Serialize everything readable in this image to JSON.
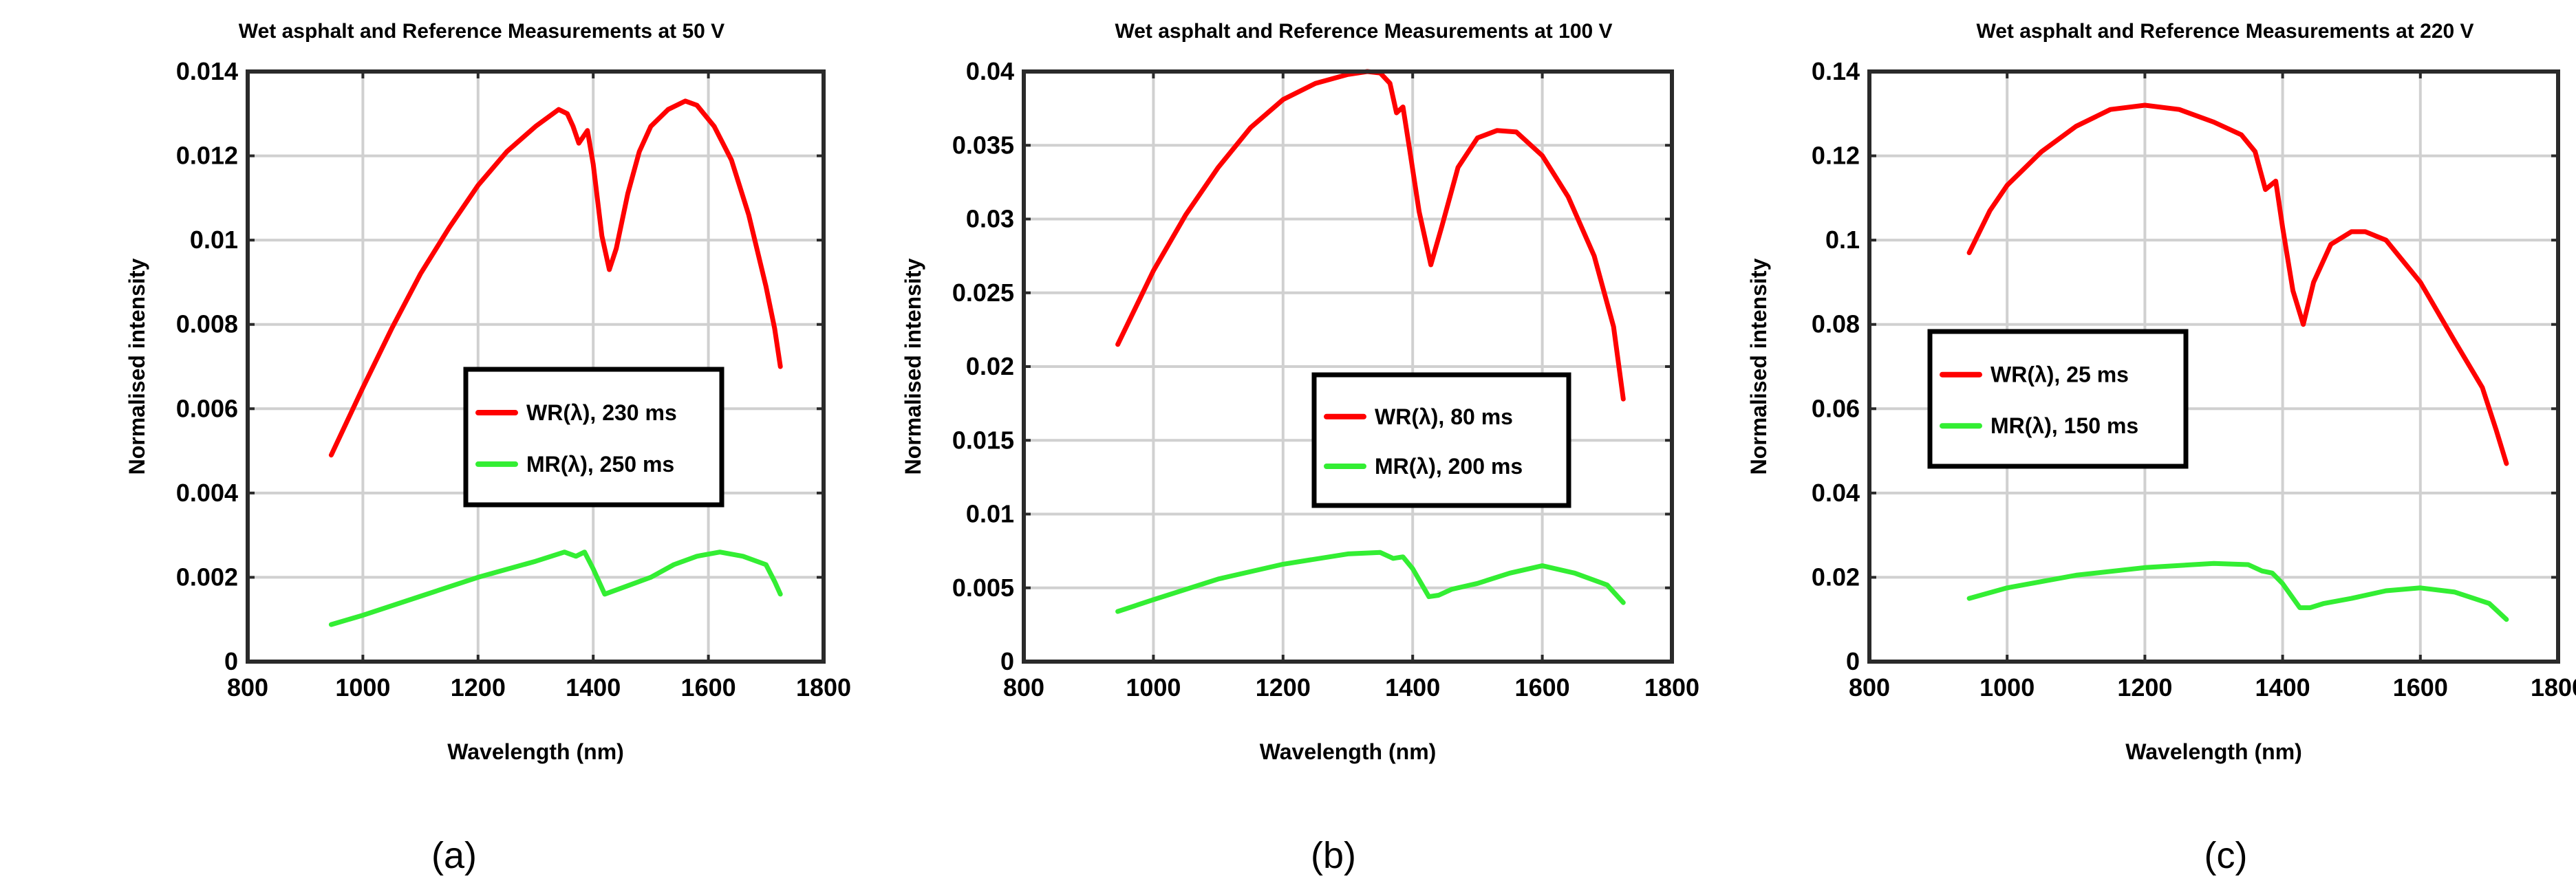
{
  "chart_data": [
    {
      "type": "line",
      "title": "Wet asphalt and Reference Measurements at 50 V",
      "xlabel": "Wavelength (nm)",
      "ylabel": "Normalised intensity",
      "xlim": [
        800,
        1800
      ],
      "ylim": [
        0,
        0.014
      ],
      "xticks": [
        800,
        1000,
        1200,
        1400,
        1600,
        1800
      ],
      "xtick_labels": [
        "800",
        "1000",
        "1200",
        "1400",
        "1600",
        "1800"
      ],
      "yticks": [
        0,
        0.002,
        0.004,
        0.006,
        0.008,
        0.01,
        0.012,
        0.014
      ],
      "ytick_labels": [
        "0",
        "0.002",
        "0.004",
        "0.006",
        "0.008",
        "0.01",
        "0.012",
        "0.014"
      ],
      "grid": true,
      "legend_position": "center-right",
      "caption": "(a)",
      "series": [
        {
          "name": "WR(λ),  230 ms",
          "color": "#ff0000",
          "x": [
            945,
            1000,
            1050,
            1100,
            1150,
            1200,
            1250,
            1300,
            1340,
            1355,
            1365,
            1375,
            1390,
            1400,
            1415,
            1428,
            1440,
            1460,
            1480,
            1500,
            1530,
            1560,
            1580,
            1610,
            1640,
            1670,
            1700,
            1715,
            1725
          ],
          "y": [
            0.0049,
            0.0065,
            0.0079,
            0.0092,
            0.0103,
            0.0113,
            0.0121,
            0.0127,
            0.0131,
            0.013,
            0.0127,
            0.0123,
            0.0126,
            0.0118,
            0.0101,
            0.0093,
            0.0098,
            0.0111,
            0.0121,
            0.0127,
            0.0131,
            0.0133,
            0.0132,
            0.0127,
            0.0119,
            0.0106,
            0.0089,
            0.0079,
            0.007
          ]
        },
        {
          "name": "MR(λ), 250 ms",
          "color": "#33ee33",
          "x": [
            945,
            1000,
            1100,
            1200,
            1300,
            1350,
            1370,
            1385,
            1400,
            1420,
            1440,
            1460,
            1500,
            1540,
            1580,
            1620,
            1660,
            1700,
            1715,
            1725
          ],
          "y": [
            0.00088,
            0.0011,
            0.00155,
            0.002,
            0.00238,
            0.0026,
            0.0025,
            0.0026,
            0.0022,
            0.0016,
            0.0017,
            0.0018,
            0.002,
            0.0023,
            0.0025,
            0.0026,
            0.0025,
            0.0023,
            0.0019,
            0.0016
          ]
        }
      ]
    },
    {
      "type": "line",
      "title": "Wet asphalt and Reference Measurements at 100  V",
      "xlabel": "Wavelength (nm)",
      "ylabel": "Normalised intensity",
      "xlim": [
        800,
        1800
      ],
      "ylim": [
        0,
        0.04
      ],
      "xticks": [
        800,
        1000,
        1200,
        1400,
        1600,
        1800
      ],
      "xtick_labels": [
        "800",
        "1000",
        "1200",
        "1400",
        "1600",
        "1800"
      ],
      "yticks": [
        0,
        0.005,
        0.01,
        0.015,
        0.02,
        0.025,
        0.03,
        0.035,
        0.04
      ],
      "ytick_labels": [
        "0",
        "0.005",
        "0.01",
        "0.015",
        "0.02",
        "0.025",
        "0.03",
        "0.035",
        "0.04"
      ],
      "grid": true,
      "legend_position": "center-right",
      "caption": "(b)",
      "series": [
        {
          "name": "WR(λ),  80 ms",
          "color": "#ff0000",
          "x": [
            945,
            1000,
            1050,
            1100,
            1150,
            1200,
            1250,
            1300,
            1330,
            1350,
            1365,
            1375,
            1385,
            1395,
            1410,
            1428,
            1445,
            1470,
            1500,
            1530,
            1560,
            1600,
            1640,
            1680,
            1710,
            1725
          ],
          "y": [
            0.0215,
            0.0265,
            0.0303,
            0.0335,
            0.0362,
            0.0381,
            0.0392,
            0.0398,
            0.04,
            0.0399,
            0.0392,
            0.0372,
            0.0376,
            0.0348,
            0.0305,
            0.0269,
            0.0295,
            0.0335,
            0.0355,
            0.036,
            0.0359,
            0.0343,
            0.0315,
            0.0275,
            0.0227,
            0.0178
          ]
        },
        {
          "name": "MR(λ), 200 ms",
          "color": "#33ee33",
          "x": [
            945,
            1000,
            1100,
            1200,
            1300,
            1350,
            1370,
            1385,
            1400,
            1425,
            1440,
            1460,
            1500,
            1550,
            1600,
            1650,
            1700,
            1725
          ],
          "y": [
            0.0034,
            0.0042,
            0.0056,
            0.0066,
            0.0073,
            0.0074,
            0.007,
            0.0071,
            0.0063,
            0.0044,
            0.0045,
            0.0049,
            0.0053,
            0.006,
            0.0065,
            0.006,
            0.0052,
            0.004
          ]
        }
      ]
    },
    {
      "type": "line",
      "title": "Wet asphalt and Reference Measurements at 220  V",
      "xlabel": "Wavelength (nm)",
      "ylabel": "Normalised intensity",
      "xlim": [
        800,
        1800
      ],
      "ylim": [
        0,
        0.14
      ],
      "xticks": [
        800,
        1000,
        1200,
        1400,
        1600,
        1800
      ],
      "xtick_labels": [
        "800",
        "1000",
        "1200",
        "1400",
        "1600",
        "1800"
      ],
      "yticks": [
        0,
        0.02,
        0.04,
        0.06,
        0.08,
        0.1,
        0.12,
        0.14
      ],
      "ytick_labels": [
        "0",
        "0.02",
        "0.04",
        "0.06",
        "0.08",
        "0.1",
        "0.12",
        "0.14"
      ],
      "grid": true,
      "legend_position": "center-left",
      "caption": "(c)",
      "series": [
        {
          "name": "WR(λ),  25 ms",
          "color": "#ff0000",
          "x": [
            945,
            975,
            1000,
            1050,
            1100,
            1150,
            1200,
            1250,
            1300,
            1340,
            1360,
            1375,
            1390,
            1400,
            1415,
            1430,
            1445,
            1470,
            1500,
            1520,
            1550,
            1600,
            1650,
            1690,
            1710,
            1725
          ],
          "y": [
            0.097,
            0.107,
            0.113,
            0.121,
            0.127,
            0.131,
            0.132,
            0.131,
            0.128,
            0.125,
            0.121,
            0.112,
            0.114,
            0.103,
            0.088,
            0.08,
            0.09,
            0.099,
            0.102,
            0.102,
            0.1,
            0.09,
            0.076,
            0.065,
            0.055,
            0.047
          ]
        },
        {
          "name": "MR(λ), 150 ms",
          "color": "#33ee33",
          "x": [
            945,
            1000,
            1100,
            1200,
            1300,
            1350,
            1370,
            1385,
            1400,
            1425,
            1440,
            1460,
            1500,
            1550,
            1600,
            1650,
            1700,
            1725
          ],
          "y": [
            0.015,
            0.0175,
            0.0205,
            0.0223,
            0.0233,
            0.023,
            0.0215,
            0.021,
            0.0185,
            0.0128,
            0.0128,
            0.0138,
            0.015,
            0.0168,
            0.0175,
            0.0165,
            0.0138,
            0.01
          ]
        }
      ]
    }
  ]
}
